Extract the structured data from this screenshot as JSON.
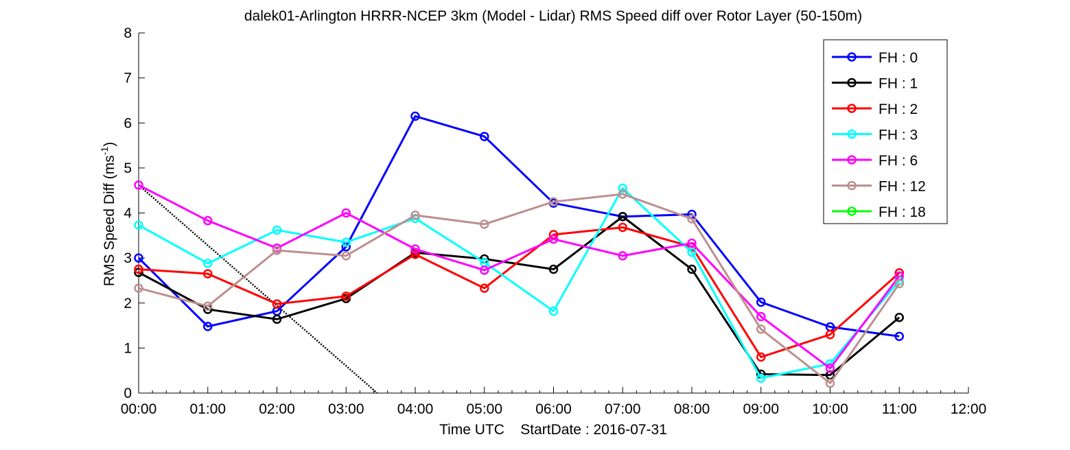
{
  "chart_data": {
    "type": "line",
    "title": "dalek01-Arlington HRRR-NCEP 3km (Model - Lidar) RMS Speed diff over Rotor Layer (50-150m)",
    "xlabel": "Time UTC    StartDate : 2016-07-31",
    "ylabel": "RMS Speed Diff (ms",
    "ylabel_sup": "-1",
    "ylabel_end": ")",
    "x_ticks": [
      "00:00",
      "01:00",
      "02:00",
      "03:00",
      "04:00",
      "05:00",
      "06:00",
      "07:00",
      "08:00",
      "09:00",
      "10:00",
      "11:00",
      "12:00"
    ],
    "y_ticks": [
      "0",
      "1",
      "2",
      "3",
      "4",
      "5",
      "6",
      "7",
      "8"
    ],
    "xlim": [
      0,
      12
    ],
    "ylim": [
      0,
      8
    ],
    "legend_position": "top-right",
    "grid": false,
    "series": [
      {
        "name": "FH : 0",
        "color": "#0000ff",
        "x": [
          0,
          1,
          2,
          3,
          4,
          5,
          6,
          7,
          8,
          9,
          10,
          11
        ],
        "values": [
          3.0,
          1.48,
          1.82,
          3.25,
          6.15,
          5.7,
          4.22,
          3.92,
          3.97,
          2.02,
          1.47,
          1.26
        ]
      },
      {
        "name": "FH : 1",
        "color": "#000000",
        "x": [
          0,
          1,
          2,
          3,
          4,
          5,
          6,
          7,
          8,
          9,
          10,
          11
        ],
        "values": [
          2.68,
          1.86,
          1.64,
          2.1,
          3.12,
          2.98,
          2.75,
          3.92,
          2.75,
          0.42,
          0.4,
          1.68
        ]
      },
      {
        "name": "FH : 2",
        "color": "#ff0000",
        "x": [
          0,
          1,
          2,
          3,
          4,
          5,
          6,
          7,
          8,
          9,
          10,
          11
        ],
        "values": [
          2.75,
          2.65,
          1.98,
          2.15,
          3.08,
          2.33,
          3.52,
          3.68,
          3.25,
          0.8,
          1.3,
          2.67
        ]
      },
      {
        "name": "FH : 3",
        "color": "#00ffff",
        "x": [
          0,
          1,
          2,
          3,
          4,
          5,
          6,
          7,
          8,
          9,
          10,
          11
        ],
        "values": [
          3.73,
          2.88,
          3.62,
          3.35,
          3.88,
          2.9,
          1.82,
          4.55,
          3.13,
          0.33,
          0.65,
          2.5
        ]
      },
      {
        "name": "FH : 6",
        "color": "#ff00ff",
        "x": [
          0,
          1,
          2,
          3,
          4,
          5,
          6,
          7,
          8,
          9,
          10,
          11
        ],
        "values": [
          4.62,
          3.83,
          3.22,
          4.0,
          3.2,
          2.73,
          3.42,
          3.05,
          3.33,
          1.7,
          0.55,
          2.6
        ]
      },
      {
        "name": "FH : 12",
        "color": "#bc8f8f",
        "x": [
          0,
          1,
          2,
          3,
          4,
          5,
          6,
          7,
          8,
          9,
          10,
          11
        ],
        "values": [
          2.33,
          1.93,
          3.17,
          3.05,
          3.95,
          3.75,
          4.25,
          4.42,
          3.87,
          1.42,
          0.22,
          2.43
        ]
      },
      {
        "name": "FH : 18",
        "color": "#00ff00",
        "x": [],
        "values": []
      }
    ],
    "annotation_line": {
      "x": [
        0,
        3.45
      ],
      "values": [
        4.62,
        0
      ]
    }
  }
}
